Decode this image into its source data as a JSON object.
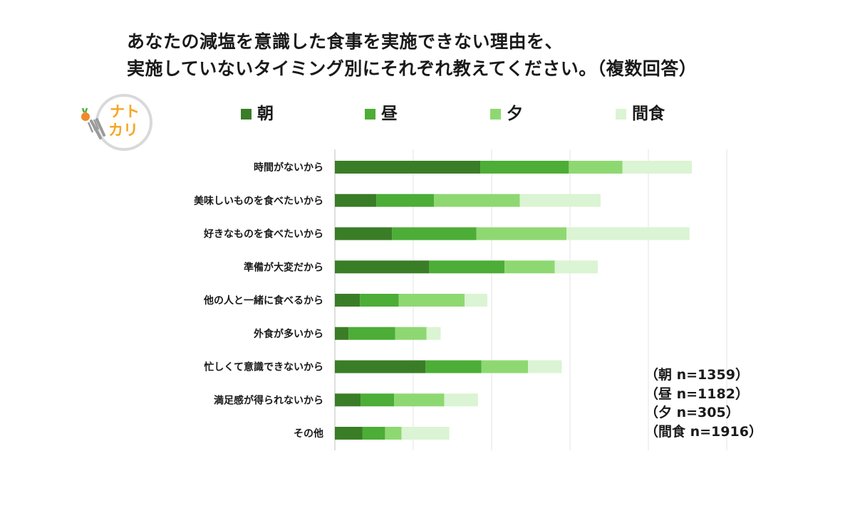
{
  "title": {
    "line1": "あなたの減塩を意識した食事を実施できない理由を、",
    "line2": "実施していないタイミング別にそれぞれ教えてください。（複数回答）"
  },
  "logo": {
    "text1": "ナト",
    "text2": "カリ",
    "icon": "fork-knife-vegetable-icon"
  },
  "legend": [
    {
      "label": "朝",
      "color": "#3a7d27"
    },
    {
      "label": "昼",
      "color": "#4cad37"
    },
    {
      "label": "夕",
      "color": "#8ed872"
    },
    {
      "label": "間食",
      "color": "#dbf4d3"
    }
  ],
  "notes": [
    "（朝 n=1359）",
    "（昼 n=1182）",
    "（夕 n=305）",
    "（間食 n=1916）"
  ],
  "chart_data": {
    "type": "bar",
    "orientation": "horizontal",
    "stacked": true,
    "title": "",
    "xlabel": "",
    "ylabel": "",
    "xlim": [
      0,
      100
    ],
    "grid": true,
    "legend_position": "top",
    "categories": [
      "時間がないから",
      "美味しいものを食べたいから",
      "好きなものを食べたいから",
      "準備が大変だから",
      "他の人と一緒に食べるから",
      "外食が多いから",
      "忙しくて意識できないから",
      "満足感が得られないから",
      "その他"
    ],
    "series": [
      {
        "name": "朝",
        "color": "#3a7d27",
        "values": [
          37.1,
          10.6,
          14.6,
          24.0,
          6.4,
          3.5,
          23.1,
          6.6,
          7.0
        ]
      },
      {
        "name": "昼",
        "color": "#4cad37",
        "values": [
          22.6,
          14.7,
          21.5,
          19.3,
          9.9,
          11.9,
          14.3,
          8.5,
          5.8
        ]
      },
      {
        "name": "夕",
        "color": "#8ed872",
        "values": [
          13.7,
          21.9,
          23.0,
          12.8,
          16.8,
          8.0,
          11.9,
          12.8,
          4.2
        ]
      },
      {
        "name": "間食",
        "color": "#dbf4d3",
        "values": [
          17.7,
          20.6,
          31.4,
          11.0,
          5.8,
          3.6,
          8.6,
          8.6,
          12.2
        ]
      }
    ]
  }
}
